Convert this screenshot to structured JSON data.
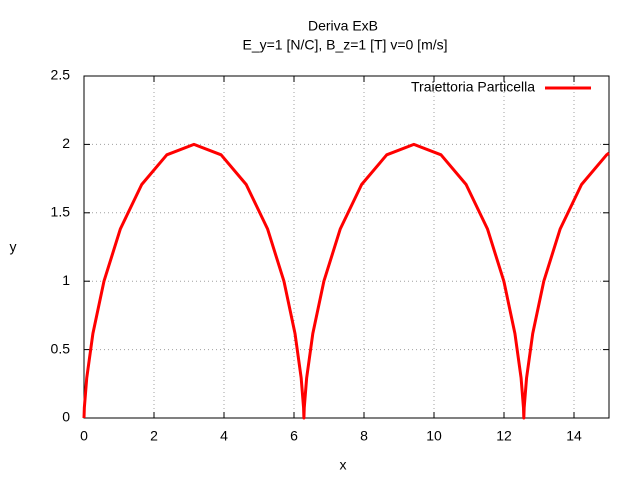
{
  "chart_data": {
    "type": "line",
    "title": "Deriva ExB",
    "subtitle": "E_y=1 [N/C], B_z=1 [T] v=0 [m/s]",
    "x_label": "x",
    "y_label": "y",
    "xlim": [
      0,
      15
    ],
    "ylim": [
      0,
      2.5
    ],
    "xticks": [
      0,
      2,
      4,
      6,
      8,
      10,
      12,
      14
    ],
    "yticks": [
      0,
      0.5,
      1,
      1.5,
      2,
      2.5
    ],
    "grid": true,
    "legend": "top-right",
    "x": [
      0,
      0.01,
      0.0783,
      0.2542,
      0.5708,
      1.0396,
      1.6491,
      2.3662,
      3.1416,
      3.917,
      4.6341,
      5.2436,
      5.7124,
      6.029,
      6.2049,
      6.2732,
      6.2832,
      6.2932,
      6.3615,
      6.5374,
      6.854,
      7.3228,
      7.9323,
      8.6494,
      9.4248,
      10.2002,
      10.9173,
      11.5268,
      11.9956,
      12.3122,
      12.4881,
      12.5564,
      12.5664,
      12.5764,
      12.6447,
      12.8206,
      13.1372,
      13.606,
      14.2155,
      14.9326,
      15.0
    ],
    "series": [
      {
        "name": "Traiettoria Particella",
        "color": "#ff0000",
        "values": [
          0,
          0.0761,
          0.2929,
          0.6173,
          1,
          1.3827,
          1.7071,
          1.9239,
          2,
          1.9239,
          1.7071,
          1.3827,
          1,
          0.6173,
          0.2929,
          0.0761,
          0,
          0.0761,
          0.2929,
          0.6173,
          1,
          1.3827,
          1.7071,
          1.9239,
          2,
          1.9239,
          1.7071,
          1.3827,
          1,
          0.6173,
          0.2929,
          0.0761,
          0,
          0.0761,
          0.2929,
          0.6173,
          1,
          1.3827,
          1.7071,
          1.9239,
          1.936
        ]
      }
    ]
  }
}
